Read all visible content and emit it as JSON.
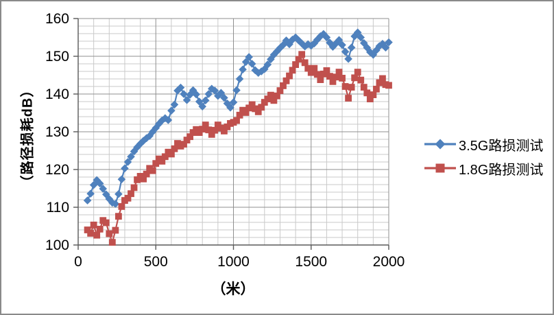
{
  "chart_data": {
    "type": "line",
    "title": "",
    "xlabel": "（米）",
    "ylabel": "（路径损耗dB）",
    "xlim": [
      0,
      2000
    ],
    "ylim": [
      100,
      160
    ],
    "x_ticks": [
      0,
      500,
      1000,
      1500,
      2000
    ],
    "y_ticks": [
      100,
      110,
      120,
      130,
      140,
      150,
      160
    ],
    "x_minor_unit": 100,
    "y_minor_unit": 2,
    "grid": "major and minor, both axes",
    "legend_position": "right",
    "colors": {
      "axis": "#595959",
      "major_grid": "#8F8F8F",
      "minor_grid": "#C9C9C9",
      "frame_border": "#8A8A8A",
      "series_blue": "#4F81BD",
      "series_red": "#C0504D"
    },
    "series": [
      {
        "name": "3.5G路损测试",
        "color": "#4F81BD",
        "marker": "diamond",
        "points": [
          [
            60,
            111.8
          ],
          [
            80,
            113.6
          ],
          [
            100,
            115.9
          ],
          [
            120,
            117.2
          ],
          [
            140,
            116.3
          ],
          [
            160,
            114.9
          ],
          [
            180,
            113.4
          ],
          [
            200,
            112.2
          ],
          [
            220,
            111.2
          ],
          [
            240,
            110.9
          ],
          [
            260,
            113.5
          ],
          [
            280,
            117.4
          ],
          [
            300,
            120.3
          ],
          [
            320,
            122.0
          ],
          [
            340,
            123.4
          ],
          [
            360,
            124.8
          ],
          [
            380,
            125.9
          ],
          [
            400,
            126.8
          ],
          [
            420,
            127.6
          ],
          [
            440,
            128.3
          ],
          [
            460,
            128.9
          ],
          [
            480,
            130.0
          ],
          [
            500,
            131.0
          ],
          [
            520,
            132.1
          ],
          [
            540,
            133.0
          ],
          [
            560,
            133.6
          ],
          [
            580,
            133.1
          ],
          [
            600,
            135.6
          ],
          [
            620,
            137.2
          ],
          [
            640,
            140.9
          ],
          [
            660,
            141.7
          ],
          [
            680,
            140.0
          ],
          [
            700,
            138.4
          ],
          [
            720,
            139.8
          ],
          [
            740,
            141.0
          ],
          [
            760,
            139.9
          ],
          [
            780,
            138.0
          ],
          [
            800,
            136.7
          ],
          [
            820,
            138.3
          ],
          [
            840,
            140.0
          ],
          [
            860,
            141.4
          ],
          [
            880,
            140.9
          ],
          [
            900,
            139.5
          ],
          [
            920,
            140.3
          ],
          [
            940,
            139.0
          ],
          [
            960,
            137.5
          ],
          [
            980,
            136.4
          ],
          [
            1000,
            137.8
          ],
          [
            1020,
            141.0
          ],
          [
            1040,
            144.0
          ],
          [
            1060,
            146.5
          ],
          [
            1080,
            148.5
          ],
          [
            1100,
            149.8
          ],
          [
            1120,
            148.0
          ],
          [
            1140,
            146.3
          ],
          [
            1160,
            145.6
          ],
          [
            1180,
            146.0
          ],
          [
            1200,
            146.6
          ],
          [
            1220,
            147.8
          ],
          [
            1240,
            149.2
          ],
          [
            1260,
            150.4
          ],
          [
            1280,
            151.3
          ],
          [
            1300,
            152.2
          ],
          [
            1320,
            153.0
          ],
          [
            1340,
            154.2
          ],
          [
            1360,
            153.2
          ],
          [
            1380,
            154.4
          ],
          [
            1400,
            155.0
          ],
          [
            1420,
            154.2
          ],
          [
            1440,
            153.4
          ],
          [
            1460,
            152.6
          ],
          [
            1480,
            153.2
          ],
          [
            1500,
            152.8
          ],
          [
            1520,
            153.4
          ],
          [
            1540,
            154.4
          ],
          [
            1560,
            155.3
          ],
          [
            1580,
            155.9
          ],
          [
            1600,
            155.0
          ],
          [
            1620,
            153.6
          ],
          [
            1640,
            152.5
          ],
          [
            1660,
            153.4
          ],
          [
            1680,
            154.3
          ],
          [
            1700,
            153.0
          ],
          [
            1720,
            151.2
          ],
          [
            1740,
            149.3
          ],
          [
            1760,
            152.3
          ],
          [
            1780,
            155.3
          ],
          [
            1800,
            156.3
          ],
          [
            1820,
            155.0
          ],
          [
            1840,
            153.5
          ],
          [
            1860,
            152.3
          ],
          [
            1880,
            151.1
          ],
          [
            1900,
            150.4
          ],
          [
            1920,
            151.6
          ],
          [
            1940,
            152.7
          ],
          [
            1960,
            153.3
          ],
          [
            1980,
            152.3
          ],
          [
            2000,
            153.7
          ]
        ]
      },
      {
        "name": "1.8G路损测试",
        "color": "#C0504D",
        "marker": "square",
        "points": [
          [
            60,
            104.0
          ],
          [
            80,
            103.1
          ],
          [
            100,
            105.3
          ],
          [
            120,
            102.6
          ],
          [
            140,
            104.2
          ],
          [
            160,
            106.5
          ],
          [
            180,
            105.9
          ],
          [
            200,
            103.0
          ],
          [
            220,
            100.7
          ],
          [
            240,
            103.9
          ],
          [
            260,
            107.6
          ],
          [
            280,
            110.2
          ],
          [
            300,
            111.8
          ],
          [
            320,
            112.4
          ],
          [
            340,
            113.6
          ],
          [
            360,
            115.2
          ],
          [
            380,
            117.3
          ],
          [
            400,
            118.2
          ],
          [
            420,
            117.5
          ],
          [
            440,
            118.8
          ],
          [
            460,
            120.3
          ],
          [
            480,
            119.7
          ],
          [
            500,
            121.6
          ],
          [
            520,
            122.8
          ],
          [
            540,
            122.2
          ],
          [
            560,
            123.4
          ],
          [
            580,
            124.6
          ],
          [
            600,
            124.1
          ],
          [
            620,
            125.5
          ],
          [
            640,
            126.9
          ],
          [
            660,
            126.2
          ],
          [
            680,
            126.7
          ],
          [
            700,
            127.8
          ],
          [
            720,
            128.7
          ],
          [
            740,
            129.8
          ],
          [
            760,
            130.6
          ],
          [
            780,
            129.8
          ],
          [
            800,
            130.7
          ],
          [
            820,
            131.8
          ],
          [
            840,
            130.5
          ],
          [
            860,
            129.3
          ],
          [
            880,
            130.4
          ],
          [
            900,
            131.8
          ],
          [
            920,
            131.0
          ],
          [
            940,
            130.2
          ],
          [
            960,
            131.3
          ],
          [
            980,
            132.2
          ],
          [
            1000,
            132.5
          ],
          [
            1020,
            133.0
          ],
          [
            1040,
            134.4
          ],
          [
            1060,
            135.7
          ],
          [
            1080,
            135.1
          ],
          [
            1100,
            136.3
          ],
          [
            1120,
            137.2
          ],
          [
            1140,
            136.1
          ],
          [
            1160,
            135.3
          ],
          [
            1180,
            136.5
          ],
          [
            1200,
            137.8
          ],
          [
            1220,
            138.7
          ],
          [
            1240,
            139.7
          ],
          [
            1260,
            138.3
          ],
          [
            1280,
            139.5
          ],
          [
            1300,
            140.9
          ],
          [
            1320,
            142.2
          ],
          [
            1340,
            143.5
          ],
          [
            1360,
            144.8
          ],
          [
            1380,
            146.3
          ],
          [
            1400,
            147.8
          ],
          [
            1420,
            149.2
          ],
          [
            1440,
            150.5
          ],
          [
            1460,
            148.3
          ],
          [
            1480,
            146.8
          ],
          [
            1500,
            145.7
          ],
          [
            1520,
            146.8
          ],
          [
            1540,
            145.2
          ],
          [
            1560,
            143.8
          ],
          [
            1580,
            145.3
          ],
          [
            1600,
            146.2
          ],
          [
            1620,
            144.7
          ],
          [
            1640,
            143.3
          ],
          [
            1660,
            144.5
          ],
          [
            1680,
            145.8
          ],
          [
            1700,
            144.2
          ],
          [
            1720,
            142.0
          ],
          [
            1740,
            138.9
          ],
          [
            1760,
            141.8
          ],
          [
            1780,
            144.3
          ],
          [
            1800,
            145.8
          ],
          [
            1820,
            143.7
          ],
          [
            1840,
            141.8
          ],
          [
            1860,
            140.3
          ],
          [
            1880,
            138.7
          ],
          [
            1900,
            139.8
          ],
          [
            1920,
            141.3
          ],
          [
            1940,
            143.0
          ],
          [
            1960,
            144.1
          ],
          [
            1980,
            142.5
          ],
          [
            2000,
            142.3
          ]
        ]
      }
    ]
  }
}
